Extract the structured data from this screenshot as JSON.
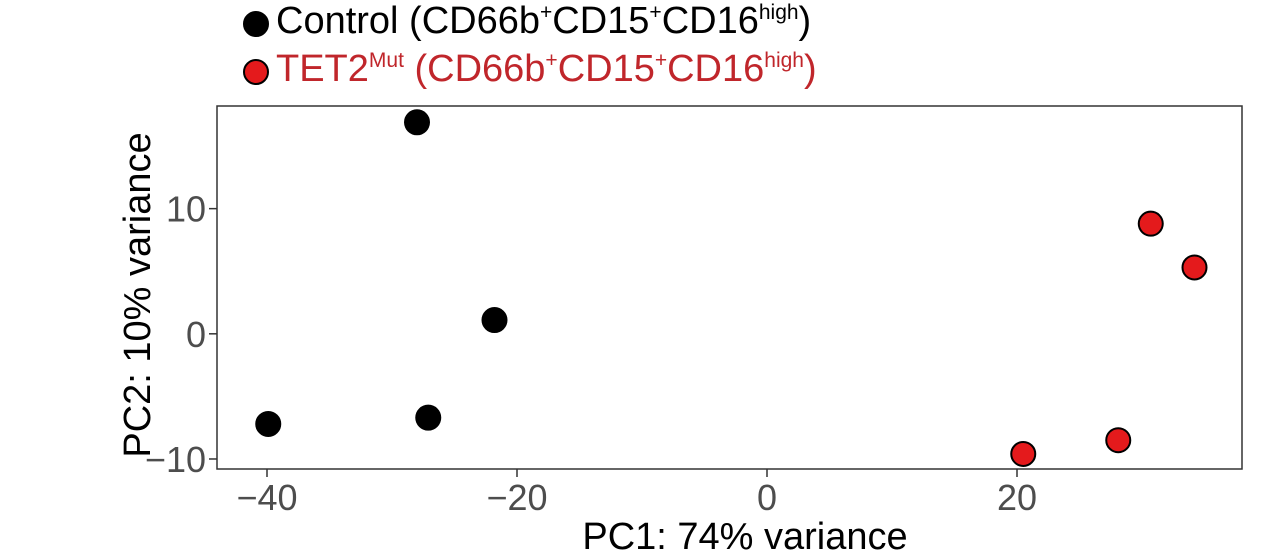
{
  "chart_data": {
    "type": "scatter",
    "xlabel": "PC1: 74% variance",
    "ylabel": "PC2: 10% variance",
    "xlim": [
      -44,
      38
    ],
    "ylim": [
      -10.8,
      18.2
    ],
    "x_ticks": [
      -40,
      -20,
      0,
      20
    ],
    "y_ticks": [
      -10,
      0,
      10
    ],
    "x_tick_labels": [
      "−40",
      "−20",
      "0",
      "20"
    ],
    "y_tick_labels": [
      "−10",
      "0",
      "10"
    ],
    "grid": false,
    "legend_position": "top-left",
    "series": [
      {
        "name": "Control (CD66b⁺CD15⁺CD16high)",
        "legend_parts": {
          "name": "Control",
          "open": " (CD66b",
          "sup1": "+",
          "mid1": "CD15",
          "sup2": "+",
          "mid2": "CD16",
          "sup3": "high",
          "close": ")"
        },
        "color": "#000000",
        "text_color": "#000000",
        "points": [
          {
            "x": -28,
            "y": 16.9
          },
          {
            "x": -21.8,
            "y": 1.1
          },
          {
            "x": -39.9,
            "y": -7.2
          },
          {
            "x": -27.1,
            "y": -6.7
          }
        ]
      },
      {
        "name": "TET2Mut (CD66b⁺CD15⁺CD16high)",
        "legend_parts": {
          "name": "TET2",
          "name_sup": "Mut",
          "open": " (CD66b",
          "sup1": "+",
          "mid1": "CD15",
          "sup2": "+",
          "mid2": "CD16",
          "sup3": "high",
          "close": ")"
        },
        "color": "#e41a1c",
        "text_color": "#c0262b",
        "points": [
          {
            "x": 30.7,
            "y": 8.8
          },
          {
            "x": 34.2,
            "y": 5.3
          },
          {
            "x": 20.5,
            "y": -9.6
          },
          {
            "x": 28.1,
            "y": -8.5
          }
        ]
      }
    ]
  }
}
